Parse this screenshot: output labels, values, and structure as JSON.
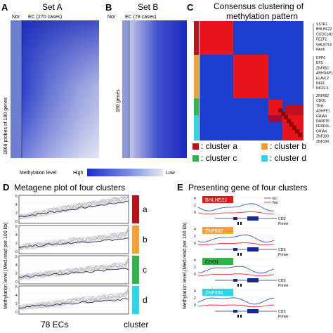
{
  "panelA": {
    "letter": "A",
    "title": "Set A",
    "col_nor": "Nor",
    "col_ec": "EC (270 cases)",
    "ylabel": "1869 probes of 180 genes"
  },
  "panelB": {
    "letter": "B",
    "title": "Set B",
    "col_nor": "Nor",
    "col_ec": "EC (78 cases)",
    "ylabel": "180 genes"
  },
  "panelC": {
    "letter": "C",
    "title_line1": "Consensus clustering of",
    "title_line2": "methylation pattern",
    "genes_group1": [
      "SSTR1",
      "BHLHE22",
      "CCDC140",
      "FEZF2",
      "GALNTL6",
      "PAX6"
    ],
    "genes_group2": [
      "DPP6",
      "EFS",
      "ZNF662",
      "ARHGAP15",
      "ELAVL2",
      "NEFL",
      "NKX2-6"
    ],
    "genes_group3": [
      "ZNF662",
      "CDO1",
      "TRH",
      "ADHFE1",
      "GRIA4",
      "PARP15",
      "FERD3L",
      "GRIA4",
      "ZNF300",
      "ZNF334"
    ],
    "colors": {
      "red": "#e8141a",
      "blue": "#1d3fd0",
      "orange": "#f5a033",
      "green": "#2fb54a",
      "cyan": "#2cd6e8",
      "dark": "#8b0000"
    }
  },
  "legend": {
    "label": "Methylation level:",
    "high": "High",
    "low": "Low",
    "items": [
      {
        "label": "cluster a",
        "color": "#b5141a"
      },
      {
        "label": "cluster b",
        "color": "#f5a033"
      },
      {
        "label": "cluster c",
        "color": "#2fb54a"
      },
      {
        "label": "cluster d",
        "color": "#2cd6e8"
      }
    ]
  },
  "panelD": {
    "letter": "D",
    "title": "Metagene plot of four clusters",
    "ylabel": "Methylation level (Med.read per 100 kb)",
    "xlabel": "78 ECs",
    "xlabel_right": "cluster",
    "yticks": [
      "0",
      "2",
      "4",
      "6"
    ],
    "clusters": [
      "a",
      "b",
      "c",
      "d"
    ]
  },
  "panelE": {
    "letter": "E",
    "title": "Presenting gene of four clusters",
    "ylabel": "Methylation level (Med.read per 100 kb)",
    "legend_ec": "EC",
    "legend_nor": "Nor",
    "cds": "CDS",
    "primer": "Primer",
    "genes": [
      {
        "name": "BHLHE22",
        "color": "#e8141a"
      },
      {
        "name": "ZNF662",
        "color": "#f5a033"
      },
      {
        "name": "CDO1",
        "color": "#2fb54a"
      },
      {
        "name": "ZNF334",
        "color": "#2cd6e8"
      }
    ]
  }
}
